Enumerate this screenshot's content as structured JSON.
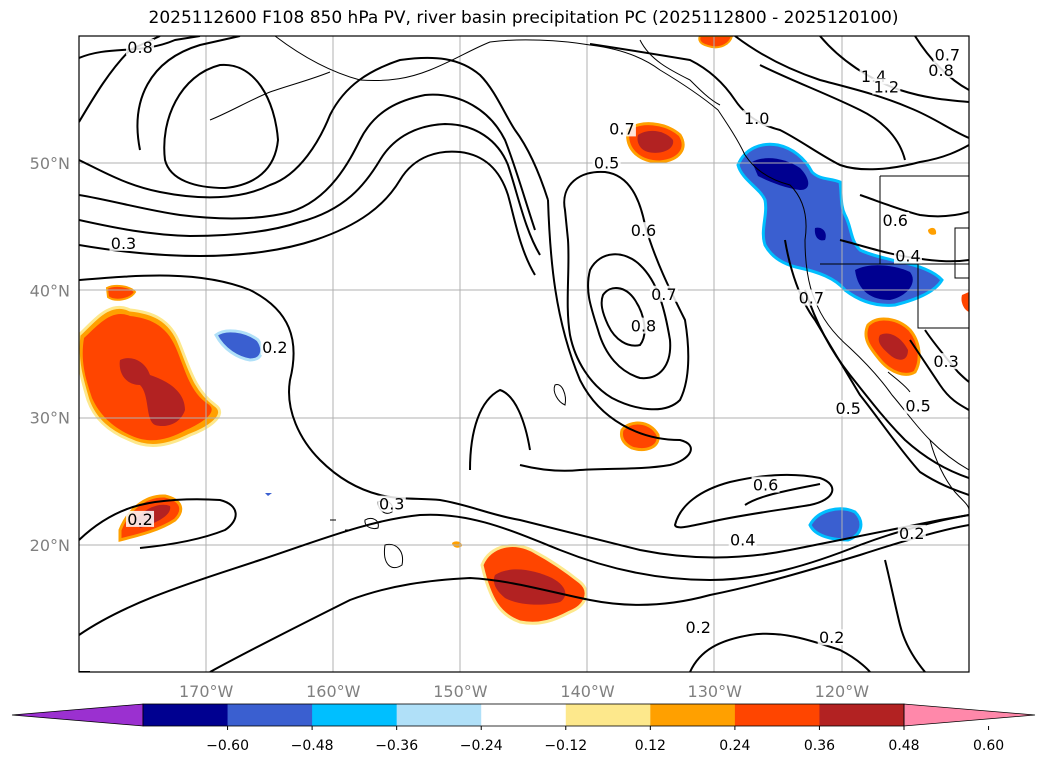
{
  "title": "2025112600 F108 850 hPa PV, river basin precipitation PC (2025112800 - 2025120100)",
  "map": {
    "lon_range": [
      -180,
      -110
    ],
    "lat_range": [
      10,
      60
    ],
    "lon_ticks": [
      {
        "value": -170,
        "label": "170°W"
      },
      {
        "value": -160,
        "label": "160°W"
      },
      {
        "value": -150,
        "label": "150°W"
      },
      {
        "value": -140,
        "label": "140°W"
      },
      {
        "value": -130,
        "label": "130°W"
      },
      {
        "value": -120,
        "label": "120°W"
      }
    ],
    "lat_ticks": [
      {
        "value": 20,
        "label": "20°N"
      },
      {
        "value": 30,
        "label": "30°N"
      },
      {
        "value": 40,
        "label": "40°N"
      },
      {
        "value": 50,
        "label": "50°N"
      }
    ],
    "grid": true
  },
  "contour_labels": [
    {
      "text": "0.8",
      "lon": -175.2,
      "lat": 58.9
    },
    {
      "text": "0.3",
      "lon": -176.5,
      "lat": 43.5
    },
    {
      "text": "0.2",
      "lon": -164.6,
      "lat": 35.3
    },
    {
      "text": "0.7",
      "lon": -137.3,
      "lat": 52.5
    },
    {
      "text": "0.5",
      "lon": -138.5,
      "lat": 49.8
    },
    {
      "text": "0.6",
      "lon": -135.6,
      "lat": 44.5
    },
    {
      "text": "0.7",
      "lon": -134.0,
      "lat": 39.5
    },
    {
      "text": "0.8",
      "lon": -135.6,
      "lat": 37.0
    },
    {
      "text": "1.0",
      "lon": -126.7,
      "lat": 53.3
    },
    {
      "text": "1.4",
      "lon": -117.5,
      "lat": 56.6
    },
    {
      "text": "1.2",
      "lon": -116.5,
      "lat": 55.8
    },
    {
      "text": "0.7",
      "lon": -111.7,
      "lat": 58.3
    },
    {
      "text": "0.8",
      "lon": -112.2,
      "lat": 57.1
    },
    {
      "text": "0.6",
      "lon": -115.8,
      "lat": 45.3
    },
    {
      "text": "0.4",
      "lon": -114.8,
      "lat": 42.5
    },
    {
      "text": "0.7",
      "lon": -122.4,
      "lat": 39.2
    },
    {
      "text": "0.3",
      "lon": -111.8,
      "lat": 34.2
    },
    {
      "text": "0.5",
      "lon": -114.0,
      "lat": 30.7
    },
    {
      "text": "0.5",
      "lon": -119.5,
      "lat": 30.5
    },
    {
      "text": "0.6",
      "lon": -126.0,
      "lat": 24.5
    },
    {
      "text": "0.4",
      "lon": -127.8,
      "lat": 20.2
    },
    {
      "text": "0.2",
      "lon": -114.5,
      "lat": 20.7
    },
    {
      "text": "0.3",
      "lon": -155.4,
      "lat": 23.0
    },
    {
      "text": "0.2",
      "lon": -175.2,
      "lat": 21.8
    },
    {
      "text": "0.2",
      "lon": -131.3,
      "lat": 13.3
    },
    {
      "text": "0.2",
      "lon": -120.8,
      "lat": 12.5
    }
  ],
  "colorbar": {
    "ticks": [
      "−0.60",
      "−0.48",
      "−0.36",
      "−0.24",
      "−0.12",
      "0.12",
      "0.24",
      "0.36",
      "0.48",
      "0.60"
    ],
    "colors": [
      "#9b30d0",
      "#000090",
      "#3a5fd0",
      "#00bfff",
      "#b0e0f8",
      "#ffffff",
      "#fde88c",
      "#ffa000",
      "#ff4500",
      "#b22222",
      "#ff88aa"
    ]
  }
}
